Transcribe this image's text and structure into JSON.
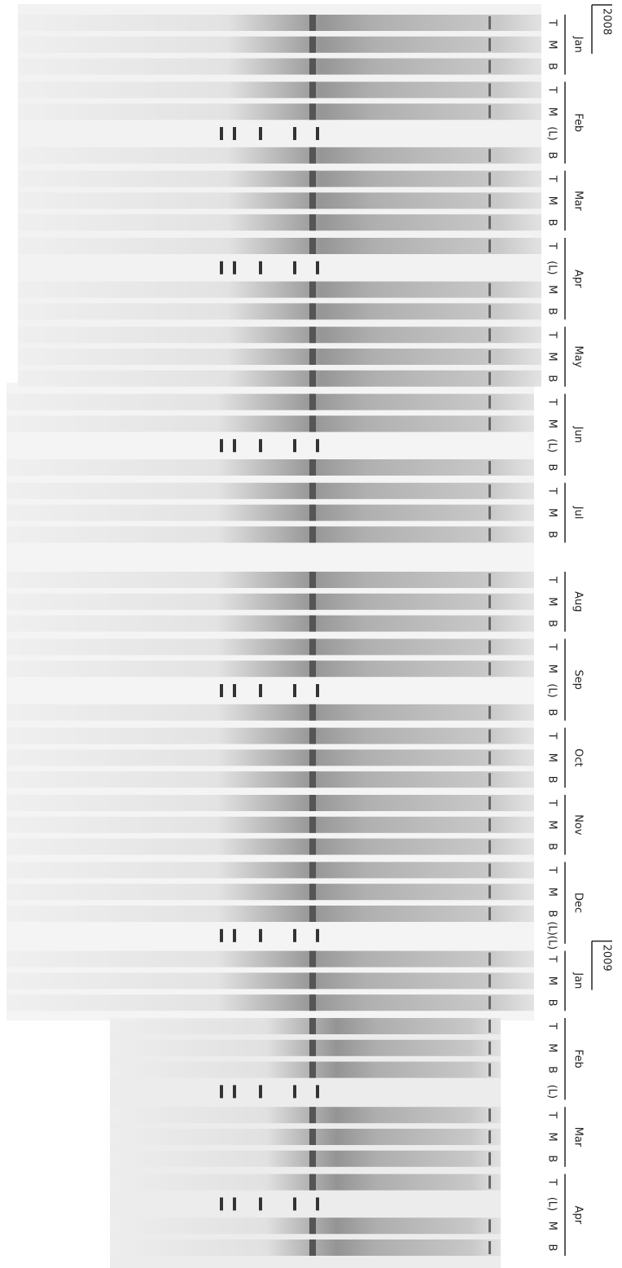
{
  "years": [
    {
      "label": "2008",
      "months": [
        {
          "label": "Jan",
          "lanes": [
            "T",
            "M",
            "B"
          ]
        },
        {
          "label": "Feb",
          "lanes": [
            "T",
            "M",
            "(L)",
            "B"
          ]
        },
        {
          "label": "Mar",
          "lanes": [
            "T",
            "M",
            "B"
          ]
        },
        {
          "label": "Apr",
          "lanes": [
            "T",
            "(L)",
            "M",
            "B"
          ]
        },
        {
          "label": "May",
          "lanes": [
            "T",
            "M",
            "B"
          ]
        },
        {
          "label": "Jun",
          "lanes": [
            "T",
            "M",
            "(L)",
            "B"
          ]
        },
        {
          "label": "Jul",
          "lanes": [
            "T",
            "M",
            "B"
          ]
        },
        {
          "label": "Aug",
          "lanes": [
            "T",
            "M",
            "B"
          ]
        },
        {
          "label": "Sep",
          "lanes": [
            "T",
            "M",
            "(L)",
            "B"
          ]
        },
        {
          "label": "Oct",
          "lanes": [
            "T",
            "M",
            "B"
          ]
        },
        {
          "label": "Nov",
          "lanes": [
            "T",
            "M",
            "B"
          ]
        },
        {
          "label": "Dec",
          "lanes": [
            "T",
            "M",
            "B",
            "(L)(L)"
          ]
        }
      ]
    },
    {
      "label": "2009",
      "months": [
        {
          "label": "Jan",
          "lanes": [
            "T",
            "M",
            "B"
          ]
        },
        {
          "label": "Feb",
          "lanes": [
            "T",
            "M",
            "B",
            "(L)"
          ]
        },
        {
          "label": "Mar",
          "lanes": [
            "T",
            "M",
            "B"
          ]
        },
        {
          "label": "Apr",
          "lanes": [
            "T",
            "(L)",
            "M",
            "B"
          ]
        }
      ]
    }
  ]
}
